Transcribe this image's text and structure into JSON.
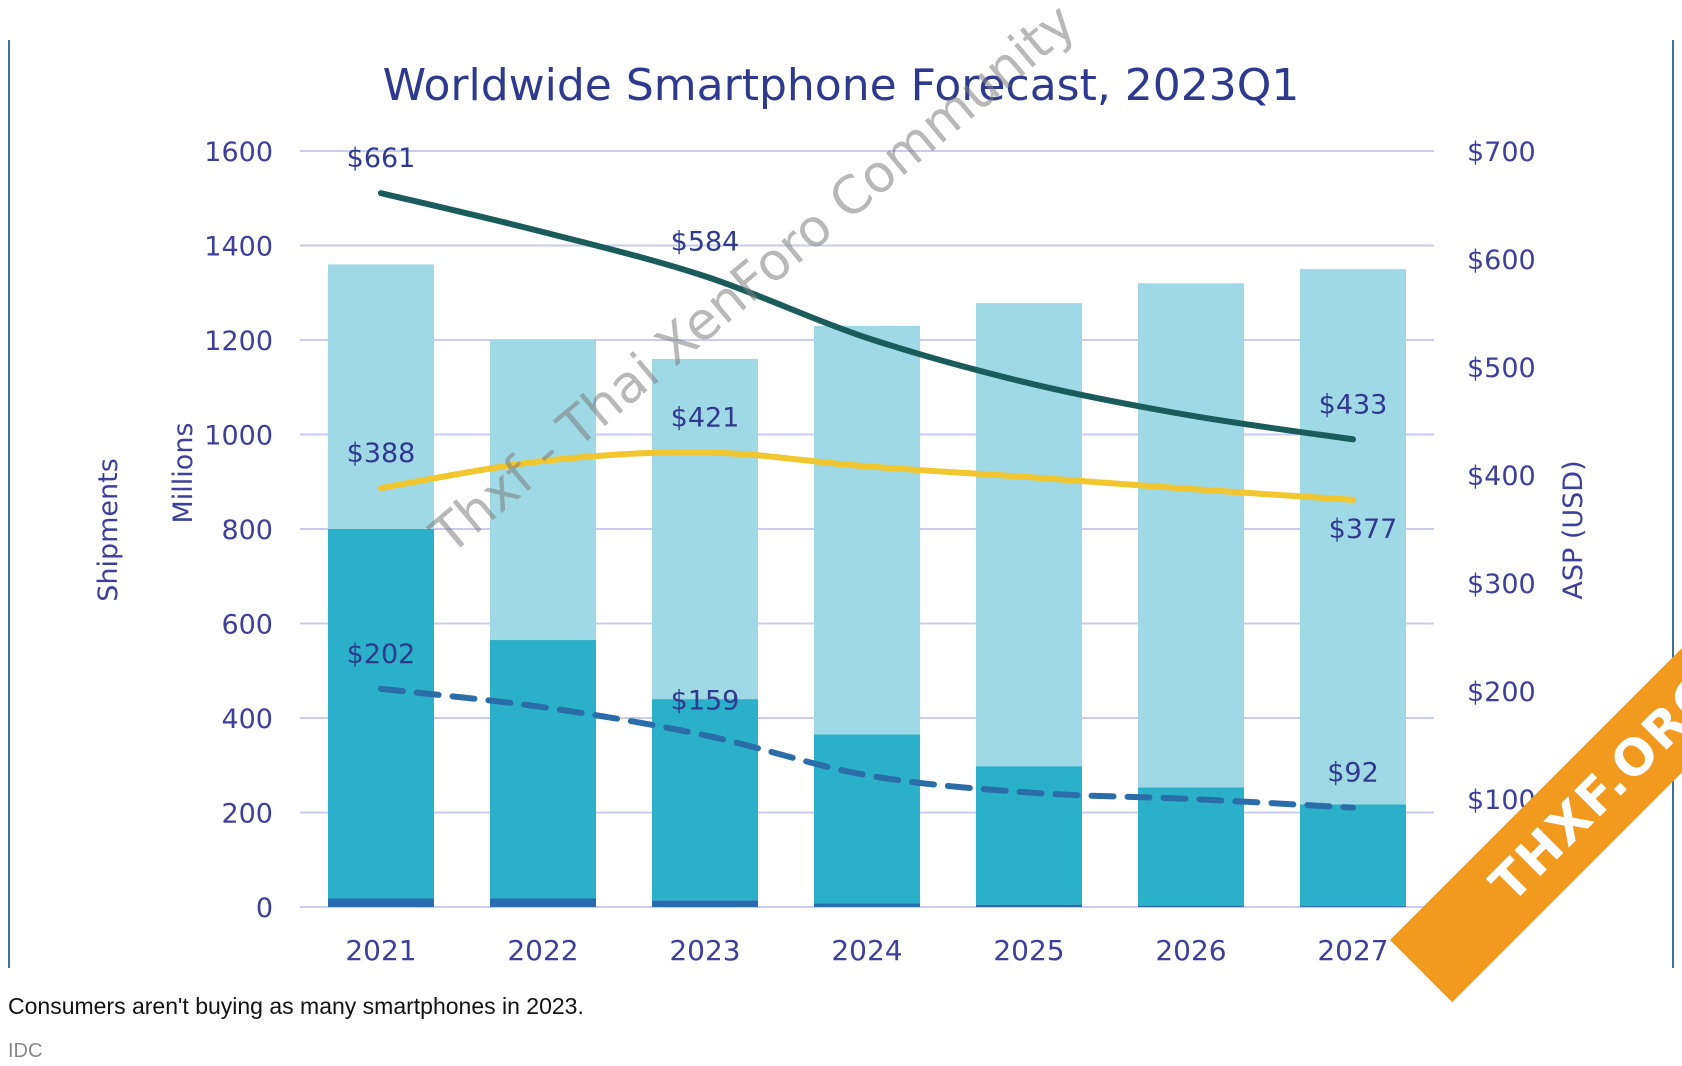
{
  "chart_data": {
    "type": "bar",
    "title": "Worldwide Smartphone Forecast, 2023Q1",
    "ylabel_left": [
      "Shipments",
      "Millions"
    ],
    "ylabel_right": "ASP (USD)",
    "categories": [
      "2021",
      "2022",
      "2023",
      "2024",
      "2025",
      "2026",
      "2027"
    ],
    "ylim_left": [
      0,
      1600
    ],
    "ylim_right": [
      0,
      700
    ],
    "y_ticks_left": [
      "0",
      "200",
      "400",
      "600",
      "800",
      "1000",
      "1200",
      "1400",
      "1600"
    ],
    "y_ticks_right": [
      "$-",
      "$100",
      "$200",
      "$300",
      "$400",
      "$500",
      "$600",
      "$700"
    ],
    "grid": true,
    "stacked_bars": [
      {
        "color": "#2a6bb0",
        "values": [
          18,
          18,
          14,
          8,
          5,
          3,
          2
        ]
      },
      {
        "color": "#2ab0c8",
        "values": [
          782,
          547,
          426,
          357,
          293,
          250,
          215
        ]
      },
      {
        "color": "#9ed9e5",
        "values": [
          560,
          635,
          720,
          865,
          980,
          1067,
          1133
        ]
      }
    ],
    "lines": [
      {
        "style": "solid",
        "color": "#1a5b5b",
        "values": [
          661,
          625,
          584,
          527,
          485,
          455,
          433
        ],
        "labels": [
          "$661",
          "",
          "$584",
          "",
          "",
          "",
          "$433"
        ]
      },
      {
        "style": "solid",
        "color": "#f2c62e",
        "values": [
          388,
          413,
          421,
          408,
          398,
          387,
          377
        ],
        "labels": [
          "$388",
          "",
          "$421",
          "",
          "",
          "",
          "$377"
        ]
      },
      {
        "style": "dashed",
        "color": "#2b6da8",
        "values": [
          202,
          185,
          159,
          122,
          106,
          100,
          92
        ],
        "labels": [
          "$202",
          "",
          "$159",
          "",
          "",
          "",
          "$92"
        ]
      }
    ]
  },
  "caption": "Consumers aren't buying as many smartphones in 2023.",
  "source": "IDC",
  "watermark": "Thxf - Thai XenForo Community",
  "ribbon": "THXF.ORG"
}
